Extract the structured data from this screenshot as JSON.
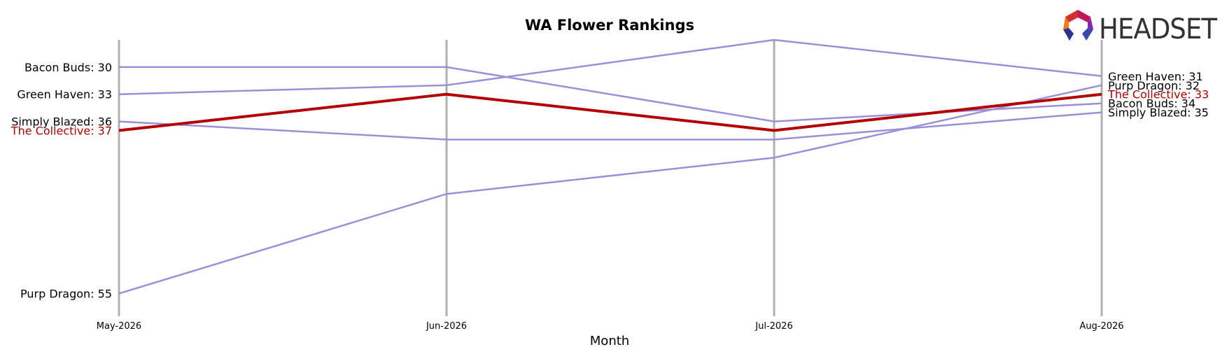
{
  "chart_data": {
    "type": "line",
    "title": "WA Flower Rankings",
    "xlabel": "Month",
    "ylabel": "",
    "categories": [
      "May-2026",
      "Jun-2026",
      "Jul-2026",
      "Aug-2026"
    ],
    "y_inverted": true,
    "ylim": [
      57.5,
      27
    ],
    "grid": false,
    "series": [
      {
        "name": "Bacon Buds",
        "values": [
          30,
          30,
          36,
          34
        ],
        "color": "#9b8fd8",
        "highlight": false
      },
      {
        "name": "Green Haven",
        "values": [
          33,
          32,
          27,
          31
        ],
        "color": "#9b8fd8",
        "highlight": false
      },
      {
        "name": "Simply Blazed",
        "values": [
          36,
          38,
          38,
          35
        ],
        "color": "#9b8fd8",
        "highlight": false
      },
      {
        "name": "Purp Dragon",
        "values": [
          55,
          44,
          40,
          32
        ],
        "color": "#9b8fd8",
        "highlight": false
      },
      {
        "name": "The Collective",
        "values": [
          37,
          33,
          37,
          33
        ],
        "color": "#b30000",
        "highlight": true
      }
    ],
    "left_labels": [
      {
        "text": "Bacon Buds: 30",
        "series": "Bacon Buds"
      },
      {
        "text": "Green Haven: 33",
        "series": "Green Haven"
      },
      {
        "text": "Simply Blazed: 36",
        "series": "Simply Blazed"
      },
      {
        "text": "The Collective: 37",
        "series": "The Collective"
      },
      {
        "text": "Purp Dragon: 55",
        "series": "Purp Dragon"
      }
    ],
    "right_labels": [
      {
        "text": "Green Haven: 31",
        "series": "Green Haven"
      },
      {
        "text": "Purp Dragon: 32",
        "series": "Purp Dragon"
      },
      {
        "text": "The Collective: 33",
        "series": "The Collective"
      },
      {
        "text": "Bacon Buds: 34",
        "series": "Bacon Buds"
      },
      {
        "text": "Simply Blazed: 35",
        "series": "Simply Blazed"
      }
    ]
  },
  "logo": {
    "text": "HEADSET",
    "icon": "headset-logo-icon"
  },
  "colors": {
    "highlight": "#b30000",
    "other": "#9b8fd8",
    "gridline": "#b0b0b0",
    "label_default": "#000000"
  }
}
